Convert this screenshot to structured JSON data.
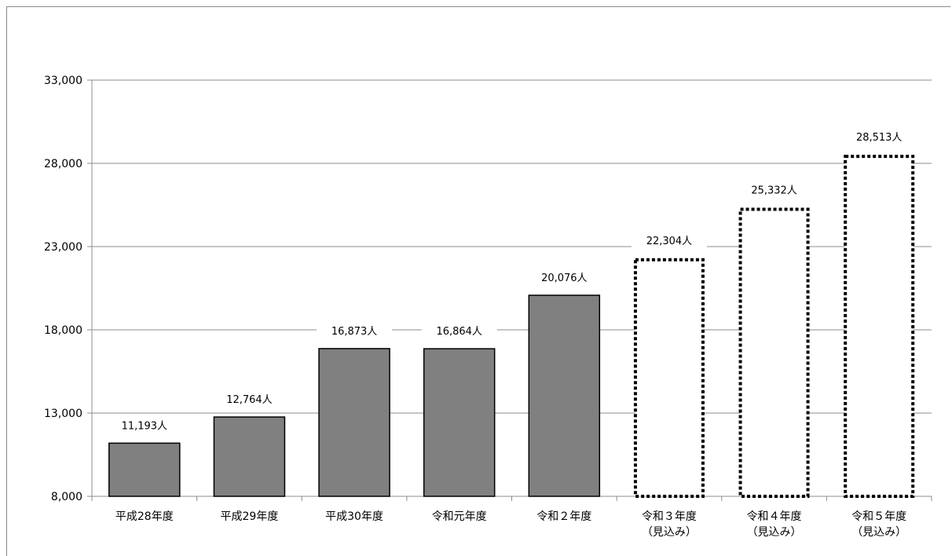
{
  "chart_data": {
    "type": "bar",
    "title": "",
    "xlabel": "",
    "ylabel": "",
    "ylim": [
      8000,
      33000
    ],
    "yticks": [
      8000,
      13000,
      18000,
      23000,
      28000,
      33000
    ],
    "ytick_labels": [
      "8,000",
      "13,000",
      "18,000",
      "23,000",
      "28,000",
      "33,000"
    ],
    "grid": true,
    "categories": [
      [
        "平成28年度"
      ],
      [
        "平成29年度"
      ],
      [
        "平成30年度"
      ],
      [
        "令和元年度"
      ],
      [
        "令和２年度"
      ],
      [
        "令和３年度",
        "（見込み）"
      ],
      [
        "令和４年度",
        "（見込み）"
      ],
      [
        "令和５年度",
        "（見込み）"
      ]
    ],
    "values": [
      11193,
      12764,
      16873,
      16864,
      20076,
      22304,
      25332,
      28513
    ],
    "data_labels": [
      "11,193人",
      "12,764人",
      "16,873人",
      "16,864人",
      "20,076人",
      "22,304人",
      "25,332人",
      "28,513人"
    ],
    "projected": [
      false,
      false,
      false,
      false,
      false,
      true,
      true,
      true
    ],
    "colors": {
      "actual_fill": "#808080",
      "outline": "#000000",
      "grid": "#8c8c8c",
      "projected_fill": "#ffffff"
    }
  }
}
